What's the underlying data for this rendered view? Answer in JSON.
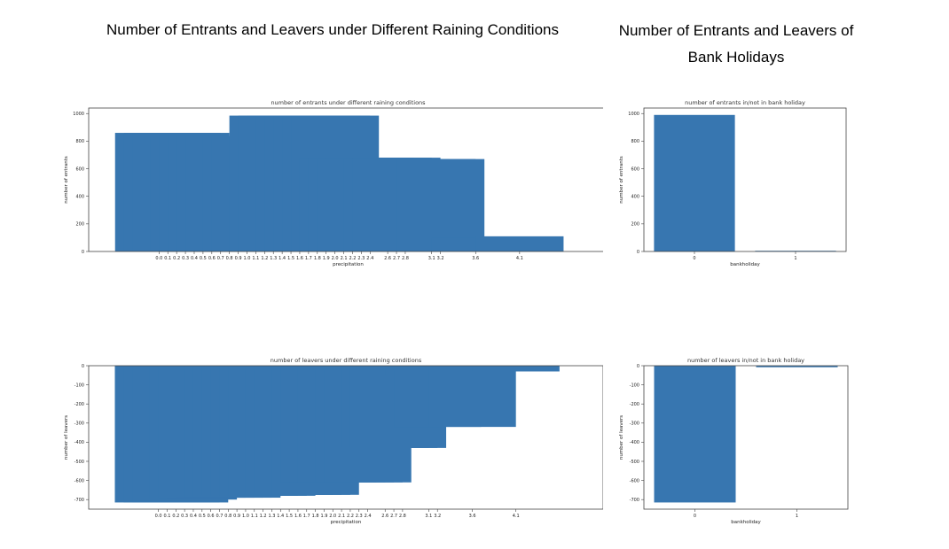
{
  "titles": {
    "left": "Number of Entrants and Leavers under Different Raining Conditions",
    "right_line1": "Number of Entrants and Leavers of",
    "right_line2": "Bank Holidays"
  },
  "chart_data": [
    {
      "id": "entrants_rain",
      "type": "bar",
      "title": "number of entrants under different raining conditions",
      "xlabel": "precipitation",
      "ylabel": "number of entrants",
      "x": [
        0.0,
        0.1,
        0.2,
        0.3,
        0.4,
        0.5,
        0.6,
        0.7,
        0.8,
        0.9,
        1.0,
        1.1,
        1.2,
        1.3,
        1.4,
        1.5,
        1.6,
        1.7,
        1.8,
        1.9,
        2.0,
        2.1,
        2.2,
        2.3,
        2.4,
        2.6,
        2.7,
        2.8,
        3.1,
        3.2,
        3.6,
        4.1
      ],
      "values": [
        860,
        860,
        860,
        860,
        830,
        835,
        835,
        835,
        835,
        835,
        835,
        835,
        835,
        985,
        985,
        985,
        985,
        985,
        985,
        985,
        985,
        680,
        680,
        680,
        680,
        680,
        680,
        670,
        670,
        670,
        100,
        110
      ],
      "xtick_labels": [
        "0.0",
        "0.1",
        "0.2",
        "0.3",
        "0.4",
        "0.5",
        "0.6",
        "0.7",
        "0.8",
        "0.9",
        "1.0",
        "1.1",
        "1.2",
        "1.3",
        "1.4",
        "1.5",
        "1.6",
        "1.7",
        "1.8",
        "1.9",
        "2.0",
        "2.1",
        "2.2",
        "2.3",
        "2.4",
        "2.6",
        "2.7",
        "2.8",
        "3.1",
        "3.2",
        "3.6",
        "4.1"
      ],
      "yticks": [
        0,
        200,
        400,
        600,
        800,
        1000
      ],
      "ylim": [
        0,
        1040
      ],
      "xlim": [
        -0.8,
        5.1
      ],
      "bar_width": 1.0
    },
    {
      "id": "entrants_holiday",
      "type": "bar",
      "title": "number of entrants in/not in bank holiday",
      "xlabel": "bankholiday",
      "ylabel": "number of entrants",
      "x": [
        0,
        1
      ],
      "values": [
        990,
        5
      ],
      "xtick_labels": [
        "0",
        "1"
      ],
      "yticks": [
        0,
        200,
        400,
        600,
        800,
        1000
      ],
      "ylim": [
        0,
        1040
      ],
      "xlim": [
        -0.5,
        1.5
      ],
      "bar_width": 0.8
    },
    {
      "id": "leavers_rain",
      "type": "bar",
      "title": "number of leavers under different raining conditions",
      "xlabel": "precipitation",
      "ylabel": "number of leavers",
      "x": [
        0.0,
        0.1,
        0.2,
        0.3,
        0.4,
        0.5,
        0.6,
        0.7,
        0.8,
        0.9,
        1.0,
        1.1,
        1.2,
        1.3,
        1.4,
        1.5,
        1.6,
        1.7,
        1.8,
        1.9,
        2.0,
        2.1,
        2.2,
        2.3,
        2.4,
        2.6,
        2.7,
        2.8,
        3.1,
        3.2,
        3.6,
        4.1
      ],
      "values": [
        -715,
        -715,
        -715,
        -715,
        -700,
        -690,
        -690,
        -690,
        -690,
        -690,
        -680,
        -680,
        -680,
        -680,
        -675,
        -675,
        -675,
        -675,
        -675,
        -610,
        -610,
        -610,
        -610,
        -610,
        -610,
        -430,
        -430,
        -430,
        -50,
        -320,
        -320,
        -30
      ],
      "xtick_labels": [
        "0.0",
        "0.1",
        "0.2",
        "0.3",
        "0.4",
        "0.5",
        "0.6",
        "0.7",
        "0.8",
        "0.9",
        "1.0",
        "1.1",
        "1.2",
        "1.3",
        "1.4",
        "1.5",
        "1.6",
        "1.7",
        "1.8",
        "1.9",
        "2.0",
        "2.1",
        "2.2",
        "2.3",
        "2.4",
        "2.6",
        "2.7",
        "2.8",
        "3.1",
        "3.2",
        "3.6",
        "4.1"
      ],
      "yticks": [
        0,
        -100,
        -200,
        -300,
        -400,
        -500,
        -600,
        -700
      ],
      "ylim": [
        -750,
        0
      ],
      "xlim": [
        -0.8,
        5.1
      ],
      "bar_width": 1.0
    },
    {
      "id": "leavers_holiday",
      "type": "bar",
      "title": "number of leavers in/not in bank holiday",
      "xlabel": "bankholiday",
      "ylabel": "number of leavers",
      "x": [
        0,
        1
      ],
      "values": [
        -715,
        -8
      ],
      "xtick_labels": [
        "0",
        "1"
      ],
      "yticks": [
        0,
        -100,
        -200,
        -300,
        -400,
        -500,
        -600,
        -700
      ],
      "ylim": [
        -750,
        0
      ],
      "xlim": [
        -0.5,
        1.5
      ],
      "bar_width": 0.8
    }
  ]
}
